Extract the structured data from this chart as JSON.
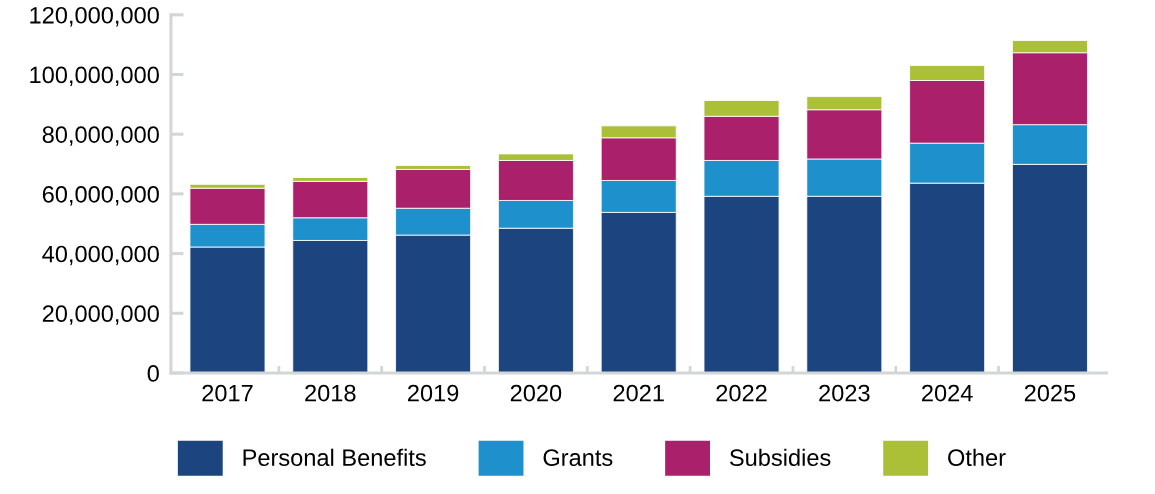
{
  "chart_data": {
    "type": "bar",
    "stacked": true,
    "categories": [
      "2017",
      "2018",
      "2019",
      "2020",
      "2021",
      "2022",
      "2023",
      "2024",
      "2025"
    ],
    "series": [
      {
        "name": "Personal Benefits",
        "color": "#1c4580",
        "values": [
          42200000,
          44400000,
          46200000,
          48500000,
          53800000,
          59200000,
          59200000,
          63600000,
          69900000
        ]
      },
      {
        "name": "Grants",
        "color": "#1e90cc",
        "values": [
          7600000,
          7600000,
          9000000,
          9300000,
          10700000,
          12000000,
          12500000,
          13400000,
          13300000
        ]
      },
      {
        "name": "Subsidies",
        "color": "#aa206a",
        "values": [
          12100000,
          12200000,
          13000000,
          13400000,
          14300000,
          14800000,
          16500000,
          21000000,
          24100000
        ]
      },
      {
        "name": "Other",
        "color": "#abbf37",
        "values": [
          1300000,
          1300000,
          1300000,
          2200000,
          4000000,
          5300000,
          4400000,
          5000000,
          4100000
        ]
      }
    ],
    "ylim": [
      0,
      120000000
    ],
    "yticks": [
      {
        "value": 0,
        "label": "0"
      },
      {
        "value": 20000000,
        "label": "20,000,000"
      },
      {
        "value": 40000000,
        "label": "40,000,000"
      },
      {
        "value": 60000000,
        "label": "60,000,000"
      },
      {
        "value": 80000000,
        "label": "80,000,000"
      },
      {
        "value": 100000000,
        "label": "100,000,000"
      },
      {
        "value": 120000000,
        "label": "120,000,000"
      }
    ],
    "grid": false,
    "legend": "bottom"
  }
}
